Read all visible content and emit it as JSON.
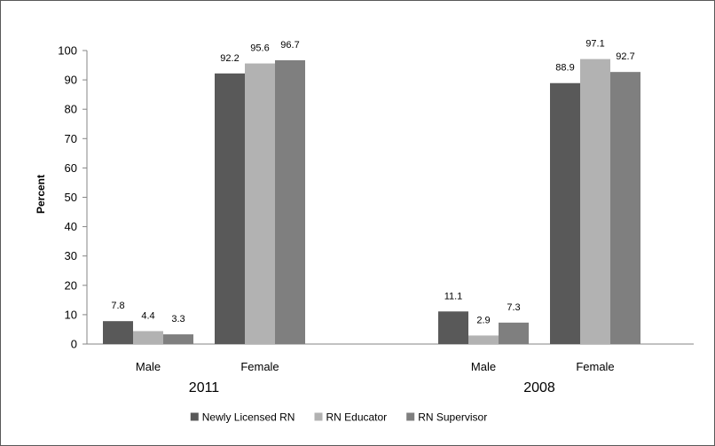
{
  "chart_data": {
    "type": "bar",
    "title": "",
    "xlabel": "",
    "ylabel": "Percent",
    "ylim": [
      0,
      100
    ],
    "yticks": [
      0,
      10,
      20,
      30,
      40,
      50,
      60,
      70,
      80,
      90,
      100
    ],
    "categories": [
      "Male",
      "Female",
      "Male",
      "Female"
    ],
    "groups": [
      {
        "label": "2011",
        "category_indices": [
          0,
          1
        ]
      },
      {
        "label": "2008",
        "category_indices": [
          2,
          3
        ]
      }
    ],
    "series": [
      {
        "name": "Newly Licensed RN",
        "color": "#595959",
        "values": [
          7.8,
          92.2,
          11.1,
          88.9
        ]
      },
      {
        "name": "RN Educator",
        "color": "#b2b2b2",
        "values": [
          4.4,
          95.6,
          2.9,
          97.1
        ]
      },
      {
        "name": "RN Supervisor",
        "color": "#7f7f7f",
        "values": [
          3.3,
          96.7,
          7.3,
          92.7
        ]
      }
    ],
    "data_labels": true,
    "legend": "bottom",
    "grid": false
  }
}
